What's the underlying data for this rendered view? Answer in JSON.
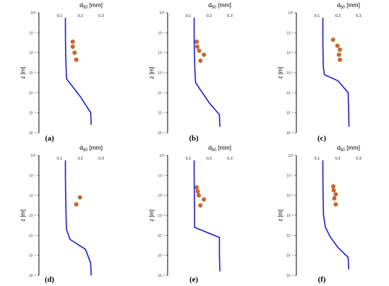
{
  "colors": {
    "profile": "#1a1acc",
    "points": "#d2691e",
    "points_edge": "#8b3a0a",
    "axis": "#000000"
  },
  "chart_data": [
    {
      "type": "line",
      "panel_label": "(a)",
      "xlabel": "d",
      "xlabel_sub": "50",
      "xlabel_unit": " [mm]",
      "ylabel": "z [m]",
      "xlim": [
        0,
        0.3
      ],
      "ylim": [
        -6,
        0
      ],
      "x_tick_labels": [
        "0.1",
        "0.2",
        "0.3"
      ],
      "y_tick_labels": [
        "10⁰",
        "10⁻¹",
        "10⁻²",
        "10⁻³",
        "10⁻⁴",
        "10⁻⁵",
        "10⁻⁶"
      ],
      "series": [
        {
          "type": "line",
          "x": [
            0.128,
            0.128,
            0.129,
            0.131,
            0.133,
            0.2,
            0.25,
            0.252
          ],
          "y": [
            -0.25,
            -1.0,
            -2.0,
            -2.7,
            -3.3,
            -4.2,
            -5.0,
            -5.6
          ]
        },
        {
          "type": "scatter",
          "x": [
            0.163,
            0.163,
            0.172,
            0.18
          ],
          "y": [
            -1.45,
            -1.7,
            -2.0,
            -2.35
          ]
        }
      ]
    },
    {
      "type": "line",
      "panel_label": "(b)",
      "xlabel": "d",
      "xlabel_sub": "50",
      "xlabel_unit": " [mm]",
      "ylabel": "z [m]",
      "xlim": [
        0,
        0.3
      ],
      "ylim": [
        -6,
        0
      ],
      "x_tick_labels": [
        "0.1",
        "0.2",
        "0.3"
      ],
      "y_tick_labels": [
        "10⁰",
        "10⁻¹",
        "10⁻²",
        "10⁻³",
        "10⁻⁴",
        "10⁻⁵",
        "10⁻⁶"
      ],
      "series": [
        {
          "type": "line",
          "x": [
            0.128,
            0.128,
            0.129,
            0.132,
            0.135,
            0.2,
            0.25,
            0.252
          ],
          "y": [
            -0.25,
            -1.0,
            -2.0,
            -3.0,
            -3.5,
            -4.5,
            -5.1,
            -5.7
          ]
        },
        {
          "type": "scatter",
          "x": [
            0.14,
            0.143,
            0.152,
            0.175,
            0.158
          ],
          "y": [
            -1.45,
            -1.7,
            -1.9,
            -2.1,
            -2.4
          ]
        }
      ]
    },
    {
      "type": "line",
      "panel_label": "(c)",
      "xlabel": "d",
      "xlabel_sub": "50",
      "xlabel_unit": " [mm]",
      "ylabel": "z [m]",
      "xlim": [
        0,
        0.3
      ],
      "ylim": [
        -6,
        0
      ],
      "x_tick_labels": [
        "0.1",
        "0.2",
        "0.3"
      ],
      "y_tick_labels": [
        "10⁰",
        "10⁻¹",
        "10⁻²",
        "10⁻³",
        "10⁻⁴",
        "10⁻⁵",
        "10⁻⁶"
      ],
      "series": [
        {
          "type": "line",
          "x": [
            0.128,
            0.128,
            0.13,
            0.135,
            0.2,
            0.25,
            0.252,
            0.254
          ],
          "y": [
            -0.25,
            -1.5,
            -2.7,
            -3.1,
            -3.4,
            -4.0,
            -5.0,
            -5.7
          ]
        },
        {
          "type": "scatter",
          "x": [
            0.177,
            0.198,
            0.21,
            0.205,
            0.21
          ],
          "y": [
            -1.35,
            -1.65,
            -1.85,
            -2.1,
            -2.35
          ]
        }
      ]
    },
    {
      "type": "line",
      "panel_label": "(d)",
      "xlabel": "d",
      "xlabel_sub": "50",
      "xlabel_unit": " [mm]",
      "ylabel": "z [m]",
      "xlim": [
        0,
        0.3
      ],
      "ylim": [
        -6,
        0
      ],
      "x_tick_labels": [
        "0.1",
        "0.2",
        "0.3"
      ],
      "y_tick_labels": [
        "10⁰",
        "10⁻¹",
        "10⁻²",
        "10⁻³",
        "10⁻⁴",
        "10⁻⁵",
        "10⁻⁶"
      ],
      "series": [
        {
          "type": "line",
          "x": [
            0.128,
            0.128,
            0.129,
            0.131,
            0.133,
            0.15,
            0.225,
            0.25,
            0.252
          ],
          "y": [
            -0.25,
            -1.0,
            -2.0,
            -3.0,
            -3.7,
            -4.2,
            -4.7,
            -5.4,
            -6.0
          ]
        },
        {
          "type": "scatter",
          "x": [
            0.198,
            0.18
          ],
          "y": [
            -2.1,
            -2.45
          ]
        }
      ]
    },
    {
      "type": "line",
      "panel_label": "(e)",
      "xlabel": "d",
      "xlabel_sub": "50",
      "xlabel_unit": " [mm]",
      "ylabel": "z [m]",
      "xlim": [
        0,
        0.3
      ],
      "ylim": [
        -6,
        0
      ],
      "x_tick_labels": [
        "0.1",
        "0.2",
        "0.3"
      ],
      "y_tick_labels": [
        "10⁰",
        "10⁻¹",
        "10⁻²",
        "10⁻³",
        "10⁻⁴",
        "10⁻⁵",
        "10⁻⁶"
      ],
      "series": [
        {
          "type": "line",
          "x": [
            0.128,
            0.128,
            0.129,
            0.13,
            0.13,
            0.25,
            0.25,
            0.252
          ],
          "y": [
            -0.25,
            -1.0,
            -2.0,
            -3.0,
            -3.6,
            -4.1,
            -5.0,
            -5.8
          ]
        },
        {
          "type": "scatter",
          "x": [
            0.14,
            0.145,
            0.15,
            0.175,
            0.158
          ],
          "y": [
            -1.6,
            -1.8,
            -2.0,
            -2.2,
            -2.5
          ]
        }
      ]
    },
    {
      "type": "line",
      "panel_label": "(f)",
      "xlabel": "d",
      "xlabel_sub": "50",
      "xlabel_unit": " [mm]",
      "ylabel": "z [m]",
      "xlim": [
        0,
        0.3
      ],
      "ylim": [
        -6,
        0
      ],
      "x_tick_labels": [
        "0.1",
        "0.2",
        "0.3"
      ],
      "y_tick_labels": [
        "10⁰",
        "10⁻¹",
        "10⁻²",
        "10⁻³",
        "10⁻⁴",
        "10⁻⁵",
        "10⁻⁶"
      ],
      "series": [
        {
          "type": "line",
          "x": [
            0.128,
            0.128,
            0.129,
            0.131,
            0.14,
            0.165,
            0.2,
            0.25,
            0.252
          ],
          "y": [
            -0.25,
            -1.0,
            -2.0,
            -3.0,
            -3.6,
            -4.1,
            -4.6,
            -5.1,
            -5.7
          ]
        },
        {
          "type": "scatter",
          "x": [
            0.178,
            0.18,
            0.19,
            0.183,
            0.19
          ],
          "y": [
            -1.55,
            -1.75,
            -1.95,
            -2.15,
            -2.45
          ]
        }
      ]
    }
  ]
}
